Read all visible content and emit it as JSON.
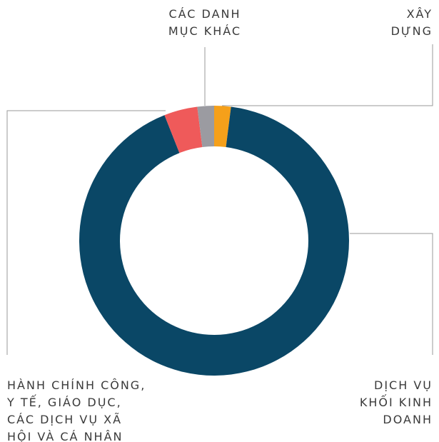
{
  "chart_data": {
    "type": "donut",
    "categories": [
      "XÂY\nDỰNG",
      "DỊCH VỤ\nKHỐI KINH\nDOANH",
      "HÀNH CHÍNH CÔNG,\nY TẾ, GIÁO DỤC,\nCÁC DỊCH VỤ XÃ\nHỘI VÀ CÁ NHÂN",
      "CÁC DANH\nMỤC KHÁC"
    ],
    "values": [
      2,
      92,
      4,
      2
    ],
    "colors": [
      "#f5a01a",
      "#0a4766",
      "#ef5a5a",
      "#9b9ba1"
    ]
  }
}
